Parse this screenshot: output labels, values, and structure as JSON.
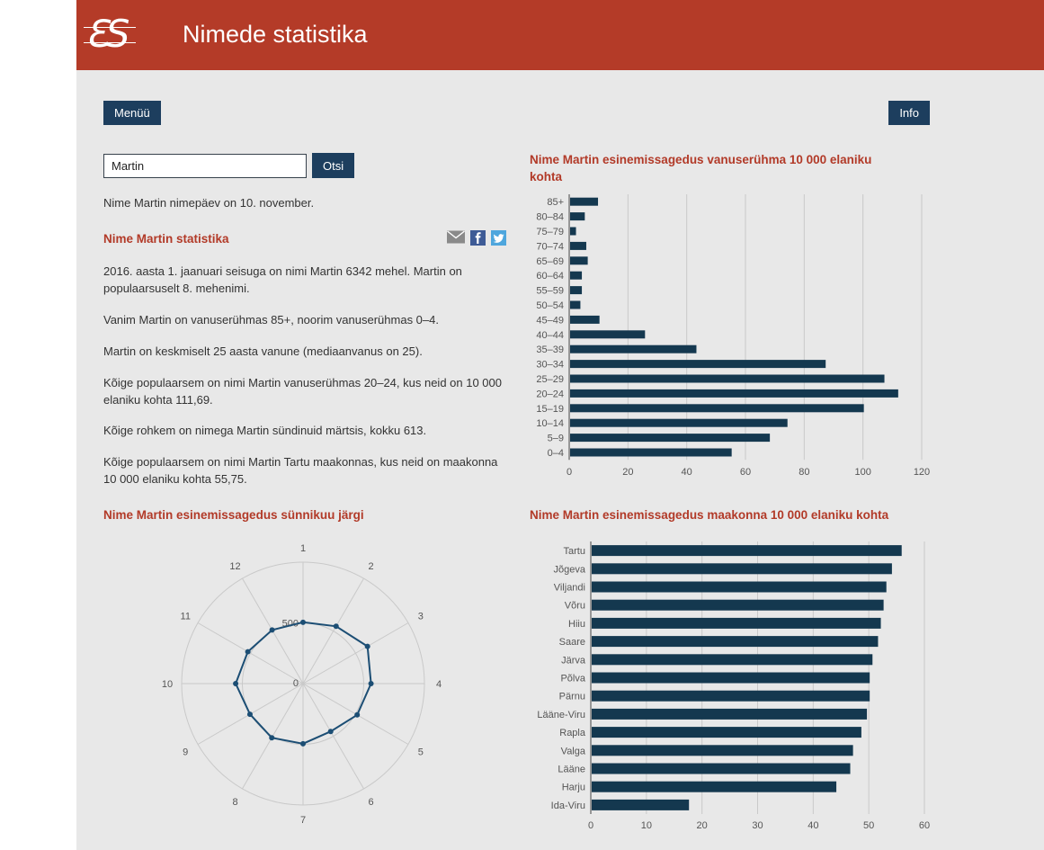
{
  "header": {
    "logo_text": "ƐS",
    "title": "Nimede statistika"
  },
  "nav": {
    "menu_label": "Menüü",
    "info_label": "Info"
  },
  "search": {
    "value": "Martin",
    "button_label": "Otsi"
  },
  "share": {
    "icons": [
      "email-icon",
      "facebook-icon",
      "twitter-icon"
    ]
  },
  "stats": {
    "nameday": "Nime Martin nimepäev on 10. november.",
    "heading": "Nime Martin statistika",
    "paragraphs": [
      "2016. aasta 1. jaanuari seisuga on nimi Martin 6342 mehel. Martin on populaarsuselt 8. mehenimi.",
      "Vanim Martin on vanuserühmas 85+, noorim vanuserühmas 0–4.",
      "Martin on keskmiselt 25 aasta vanune (mediaanvanus on 25).",
      "Kõige populaarsem on nimi Martin vanuserühmas 20–24, kus neid on 10 000 elaniku kohta 111,69.",
      "Kõige rohkem on nimega Martin sündinuid märtsis, kokku 613.",
      "Kõige populaarsem on nimi Martin Tartu maakonnas, kus neid on maakonna 10 000 elaniku kohta 55,75."
    ]
  },
  "colors": {
    "header_red": "#b43b28",
    "heading_red": "#b23a28",
    "button_navy": "#1d3e5e",
    "bar_navy": "#14384f",
    "radar_line": "#1c4e74",
    "background_gray": "#e8e8e8",
    "grid_gray": "#c9c9c9",
    "facebook_blue": "#3e5b96",
    "twitter_blue": "#4ea6dd"
  },
  "chart_data": [
    {
      "type": "bar",
      "orientation": "horizontal",
      "title": "Nime Martin esinemissagedus vanuserühma 10 000 elaniku kohta",
      "categories": [
        "85+",
        "80–84",
        "75–79",
        "70–74",
        "65–69",
        "60–64",
        "55–59",
        "50–54",
        "45–49",
        "40–44",
        "35–39",
        "30–34",
        "25–29",
        "20–24",
        "15–19",
        "10–14",
        "5–9",
        "0–4"
      ],
      "values": [
        9.5,
        5,
        2,
        5.5,
        6,
        4,
        4,
        3.5,
        10,
        25.5,
        43,
        87,
        107,
        111.69,
        100,
        74,
        68,
        55
      ],
      "xlim": [
        0,
        120
      ],
      "xticks": [
        0,
        20,
        40,
        60,
        80,
        100,
        120
      ],
      "grid": true,
      "legend": false
    },
    {
      "type": "radar",
      "title": "Nime Martin esinemissagedus sünnikuu järgi",
      "categories": [
        "1",
        "2",
        "3",
        "4",
        "5",
        "6",
        "7",
        "8",
        "9",
        "10",
        "11",
        "12"
      ],
      "values": [
        505,
        545,
        613,
        560,
        515,
        455,
        495,
        515,
        505,
        555,
        525,
        510
      ],
      "rmax": 1000,
      "ring_labels": {
        "center": "0",
        "mid": "500"
      },
      "grid": true,
      "legend": false
    },
    {
      "type": "bar",
      "orientation": "horizontal",
      "title": "Nime Martin esinemissagedus maakonna 10 000 elaniku kohta",
      "categories": [
        "Tartu",
        "Jõgeva",
        "Viljandi",
        "Võru",
        "Hiiu",
        "Saare",
        "Järva",
        "Põlva",
        "Pärnu",
        "Lääne-Viru",
        "Rapla",
        "Valga",
        "Lääne",
        "Harju",
        "Ida-Viru"
      ],
      "values": [
        55.75,
        54,
        53,
        52.5,
        52,
        51.5,
        50.5,
        50,
        50,
        49.5,
        48.5,
        47,
        46.5,
        44,
        17.5
      ],
      "xlim": [
        0,
        60
      ],
      "xticks": [
        0,
        10,
        20,
        30,
        40,
        50,
        60
      ],
      "grid": true,
      "legend": false
    }
  ]
}
